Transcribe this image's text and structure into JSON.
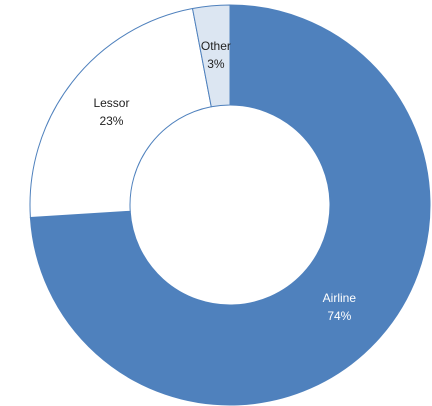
{
  "chart_data": {
    "type": "donut",
    "categories": [
      "Airline",
      "Lessor",
      "Other"
    ],
    "values": [
      74,
      23,
      3
    ],
    "value_labels": [
      "74%",
      "23%",
      "3%"
    ],
    "colors": [
      "#4f81bd",
      "#ffffff",
      "#dce6f2"
    ]
  }
}
